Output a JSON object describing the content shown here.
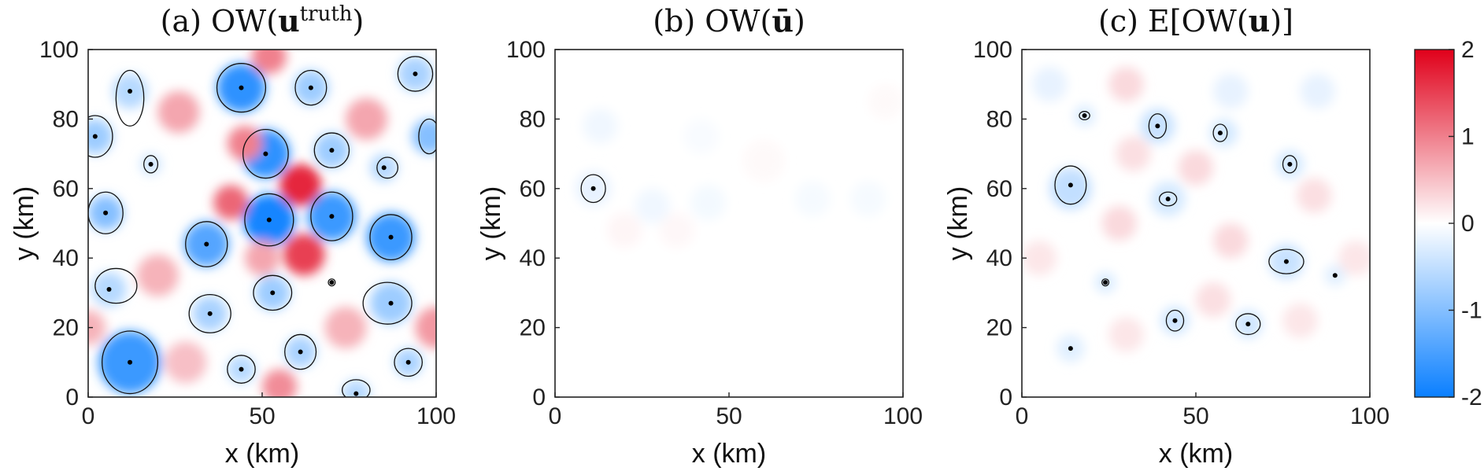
{
  "chart_data": [
    {
      "type": "heatmap",
      "title": "(a) OW(u^truth)",
      "title_parts": {
        "prefix": "(a) OW(",
        "bold": "u",
        "sup": "truth",
        "suffix": ")"
      },
      "xlabel": "x (km)",
      "ylabel": "y (km)",
      "xlim": [
        0,
        100
      ],
      "ylim": [
        0,
        100
      ],
      "xticks": [
        "0",
        "50",
        "100"
      ],
      "yticks": [
        "0",
        "20",
        "40",
        "60",
        "80",
        "100"
      ],
      "blobs": [
        {
          "x": 12,
          "y": 10,
          "v": -1.6,
          "r": 9
        },
        {
          "x": 44,
          "y": 89,
          "v": -1.7,
          "r": 7
        },
        {
          "x": 51,
          "y": 70,
          "v": -1.7,
          "r": 7
        },
        {
          "x": 52,
          "y": 51,
          "v": -1.9,
          "r": 7.5
        },
        {
          "x": 70,
          "y": 52,
          "v": -1.6,
          "r": 7
        },
        {
          "x": 87,
          "y": 46,
          "v": -1.6,
          "r": 7
        },
        {
          "x": 34,
          "y": 44,
          "v": -1.4,
          "r": 6.5
        },
        {
          "x": 5,
          "y": 53,
          "v": -1.0,
          "r": 5
        },
        {
          "x": 2,
          "y": 75,
          "v": -0.8,
          "r": 5
        },
        {
          "x": 12,
          "y": 88,
          "v": -0.6,
          "r": 5
        },
        {
          "x": 64,
          "y": 89,
          "v": -0.8,
          "r": 5
        },
        {
          "x": 70,
          "y": 71,
          "v": -0.8,
          "r": 5
        },
        {
          "x": 85,
          "y": 66,
          "v": -0.6,
          "r": 4
        },
        {
          "x": 94,
          "y": 93,
          "v": -0.7,
          "r": 5
        },
        {
          "x": 98,
          "y": 75,
          "v": -1.0,
          "r": 5
        },
        {
          "x": 18,
          "y": 67,
          "v": -0.4,
          "r": 3
        },
        {
          "x": 6,
          "y": 31,
          "v": -0.6,
          "r": 5
        },
        {
          "x": 35,
          "y": 24,
          "v": -0.7,
          "r": 5
        },
        {
          "x": 53,
          "y": 30,
          "v": -0.8,
          "r": 5
        },
        {
          "x": 87,
          "y": 27,
          "v": -0.8,
          "r": 6
        },
        {
          "x": 61,
          "y": 13,
          "v": -0.7,
          "r": 4.5
        },
        {
          "x": 44,
          "y": 8,
          "v": -0.6,
          "r": 4
        },
        {
          "x": 92,
          "y": 10,
          "v": -0.7,
          "r": 4
        },
        {
          "x": 77,
          "y": 1,
          "v": -0.6,
          "r": 4
        },
        {
          "x": 61,
          "y": 61,
          "v": 1.7,
          "r": 6
        },
        {
          "x": 62,
          "y": 41,
          "v": 1.5,
          "r": 6
        },
        {
          "x": 41,
          "y": 56,
          "v": 1.2,
          "r": 5
        },
        {
          "x": 45,
          "y": 73,
          "v": 1.0,
          "r": 5
        },
        {
          "x": 52,
          "y": 98,
          "v": 1.0,
          "r": 5
        },
        {
          "x": 26,
          "y": 82,
          "v": 0.7,
          "r": 6
        },
        {
          "x": 80,
          "y": 80,
          "v": 0.7,
          "r": 6
        },
        {
          "x": 100,
          "y": 20,
          "v": 0.8,
          "r": 6
        },
        {
          "x": 20,
          "y": 35,
          "v": 0.6,
          "r": 6
        },
        {
          "x": 50,
          "y": 40,
          "v": 0.7,
          "r": 5
        },
        {
          "x": 28,
          "y": 10,
          "v": 0.5,
          "r": 6
        },
        {
          "x": 74,
          "y": 20,
          "v": 0.6,
          "r": 6
        },
        {
          "x": 55,
          "y": 3,
          "v": 0.9,
          "r": 5
        },
        {
          "x": 0,
          "y": 20,
          "v": 0.6,
          "r": 5
        }
      ],
      "contours": [
        {
          "x": 12,
          "y": 10,
          "rx": 8,
          "ry": 9
        },
        {
          "x": 44,
          "y": 89,
          "rx": 7,
          "ry": 7
        },
        {
          "x": 51,
          "y": 70,
          "rx": 6.5,
          "ry": 7
        },
        {
          "x": 52,
          "y": 51,
          "rx": 7,
          "ry": 7.5
        },
        {
          "x": 70,
          "y": 52,
          "rx": 6,
          "ry": 7
        },
        {
          "x": 87,
          "y": 46,
          "rx": 6,
          "ry": 6.5
        },
        {
          "x": 34,
          "y": 44,
          "rx": 6,
          "ry": 6.5
        },
        {
          "x": 5,
          "y": 53,
          "rx": 5,
          "ry": 6
        },
        {
          "x": 2,
          "y": 75,
          "rx": 5,
          "ry": 6
        },
        {
          "x": 12,
          "y": 86,
          "rx": 4,
          "ry": 8
        },
        {
          "x": 64,
          "y": 89,
          "rx": 4.5,
          "ry": 5
        },
        {
          "x": 70,
          "y": 71,
          "rx": 5,
          "ry": 5
        },
        {
          "x": 86,
          "y": 66,
          "rx": 3,
          "ry": 3
        },
        {
          "x": 94,
          "y": 93,
          "rx": 5,
          "ry": 5
        },
        {
          "x": 98,
          "y": 75,
          "rx": 3,
          "ry": 5
        },
        {
          "x": 18,
          "y": 67,
          "rx": 2,
          "ry": 2.5
        },
        {
          "x": 8,
          "y": 32,
          "rx": 6,
          "ry": 5
        },
        {
          "x": 35,
          "y": 24,
          "rx": 6,
          "ry": 5.5
        },
        {
          "x": 53,
          "y": 30,
          "rx": 5.5,
          "ry": 5
        },
        {
          "x": 86,
          "y": 27,
          "rx": 7,
          "ry": 6
        },
        {
          "x": 61,
          "y": 13,
          "rx": 4.5,
          "ry": 5
        },
        {
          "x": 44,
          "y": 8,
          "rx": 4,
          "ry": 4
        },
        {
          "x": 92,
          "y": 10,
          "rx": 4,
          "ry": 4
        },
        {
          "x": 77,
          "y": 2,
          "rx": 4,
          "ry": 3
        },
        {
          "x": 70,
          "y": 33,
          "rx": 1,
          "ry": 1
        }
      ],
      "centers": [
        [
          12,
          10
        ],
        [
          44,
          89
        ],
        [
          51,
          70
        ],
        [
          52,
          51
        ],
        [
          70,
          52
        ],
        [
          87,
          46
        ],
        [
          34,
          44
        ],
        [
          5,
          53
        ],
        [
          2,
          75
        ],
        [
          12,
          88
        ],
        [
          64,
          89
        ],
        [
          70,
          71
        ],
        [
          85,
          66
        ],
        [
          94,
          93
        ],
        [
          18,
          67
        ],
        [
          6,
          31
        ],
        [
          35,
          24
        ],
        [
          53,
          30
        ],
        [
          87,
          27
        ],
        [
          61,
          13
        ],
        [
          44,
          8
        ],
        [
          92,
          10
        ],
        [
          77,
          1
        ],
        [
          70,
          33
        ]
      ]
    },
    {
      "type": "heatmap",
      "title": "(b) OW(ū)",
      "title_parts": {
        "prefix": "(b) OW(",
        "bold": "ū",
        "sup": "",
        "suffix": ")"
      },
      "xlabel": "x (km)",
      "ylabel": "y (km)",
      "xlim": [
        0,
        100
      ],
      "ylim": [
        0,
        100
      ],
      "xticks": [
        "0",
        "50",
        "100"
      ],
      "yticks": [
        "0",
        "20",
        "40",
        "60",
        "80",
        "100"
      ],
      "blobs": [
        {
          "x": 11,
          "y": 60,
          "v": -0.2,
          "r": 5
        },
        {
          "x": 13,
          "y": 78,
          "v": -0.12,
          "r": 5
        },
        {
          "x": 28,
          "y": 55,
          "v": -0.12,
          "r": 5
        },
        {
          "x": 44,
          "y": 56,
          "v": -0.1,
          "r": 5
        },
        {
          "x": 74,
          "y": 57,
          "v": -0.08,
          "r": 5
        },
        {
          "x": 90,
          "y": 57,
          "v": -0.08,
          "r": 5
        },
        {
          "x": 42,
          "y": 75,
          "v": -0.06,
          "r": 5
        },
        {
          "x": 20,
          "y": 48,
          "v": 0.08,
          "r": 5
        },
        {
          "x": 35,
          "y": 48,
          "v": 0.06,
          "r": 5
        },
        {
          "x": 60,
          "y": 68,
          "v": 0.05,
          "r": 6
        },
        {
          "x": 95,
          "y": 85,
          "v": 0.05,
          "r": 5
        }
      ],
      "contours": [
        {
          "x": 11,
          "y": 60,
          "rx": 3.5,
          "ry": 4
        }
      ],
      "centers": [
        [
          11,
          60
        ]
      ]
    },
    {
      "type": "heatmap",
      "title": "(c) E[OW(u)]",
      "title_parts": {
        "prefix": "(c) E[OW(",
        "bold": "u",
        "sup": "",
        "suffix": ")]"
      },
      "xlabel": "x (km)",
      "ylabel": "y (km)",
      "xlim": [
        0,
        100
      ],
      "ylim": [
        0,
        100
      ],
      "xticks": [
        "0",
        "50",
        "100"
      ],
      "yticks": [
        "0",
        "20",
        "40",
        "60",
        "80",
        "100"
      ],
      "blobs": [
        {
          "x": 14,
          "y": 60,
          "v": -0.5,
          "r": 6
        },
        {
          "x": 39,
          "y": 78,
          "v": -0.45,
          "r": 5
        },
        {
          "x": 58,
          "y": 76,
          "v": -0.35,
          "r": 4
        },
        {
          "x": 42,
          "y": 57,
          "v": -0.35,
          "r": 5
        },
        {
          "x": 76,
          "y": 39,
          "v": -0.45,
          "r": 5
        },
        {
          "x": 44,
          "y": 22,
          "v": -0.4,
          "r": 4
        },
        {
          "x": 65,
          "y": 21,
          "v": -0.4,
          "r": 4
        },
        {
          "x": 77,
          "y": 67,
          "v": -0.35,
          "r": 4
        },
        {
          "x": 24,
          "y": 33,
          "v": -0.3,
          "r": 3
        },
        {
          "x": 18,
          "y": 81,
          "v": -0.3,
          "r": 3
        },
        {
          "x": 14,
          "y": 14,
          "v": -0.25,
          "r": 4
        },
        {
          "x": 90,
          "y": 35,
          "v": -0.25,
          "r": 3
        },
        {
          "x": 60,
          "y": 88,
          "v": -0.2,
          "r": 5
        },
        {
          "x": 85,
          "y": 88,
          "v": -0.2,
          "r": 5
        },
        {
          "x": 8,
          "y": 90,
          "v": -0.2,
          "r": 5
        },
        {
          "x": 30,
          "y": 90,
          "v": 0.3,
          "r": 5
        },
        {
          "x": 50,
          "y": 66,
          "v": 0.3,
          "r": 5
        },
        {
          "x": 28,
          "y": 50,
          "v": 0.3,
          "r": 5
        },
        {
          "x": 60,
          "y": 45,
          "v": 0.3,
          "r": 5
        },
        {
          "x": 84,
          "y": 58,
          "v": 0.25,
          "r": 5
        },
        {
          "x": 32,
          "y": 70,
          "v": 0.25,
          "r": 5
        },
        {
          "x": 55,
          "y": 28,
          "v": 0.25,
          "r": 5
        },
        {
          "x": 30,
          "y": 18,
          "v": 0.2,
          "r": 5
        },
        {
          "x": 80,
          "y": 22,
          "v": 0.2,
          "r": 5
        },
        {
          "x": 96,
          "y": 40,
          "v": 0.2,
          "r": 5
        },
        {
          "x": 5,
          "y": 40,
          "v": 0.2,
          "r": 5
        }
      ],
      "contours": [
        {
          "x": 14,
          "y": 61,
          "rx": 4.5,
          "ry": 5.5
        },
        {
          "x": 39,
          "y": 78,
          "rx": 2.5,
          "ry": 3.5
        },
        {
          "x": 57,
          "y": 76,
          "rx": 2,
          "ry": 2.5
        },
        {
          "x": 42,
          "y": 57,
          "rx": 2.5,
          "ry": 2
        },
        {
          "x": 76,
          "y": 39,
          "rx": 5,
          "ry": 3.5
        },
        {
          "x": 44,
          "y": 22,
          "rx": 2.5,
          "ry": 3
        },
        {
          "x": 65,
          "y": 21,
          "rx": 3.5,
          "ry": 3
        },
        {
          "x": 77,
          "y": 67,
          "rx": 2,
          "ry": 2.5
        },
        {
          "x": 24,
          "y": 33,
          "rx": 1,
          "ry": 1
        },
        {
          "x": 18,
          "y": 81,
          "rx": 1.5,
          "ry": 1.2
        }
      ],
      "centers": [
        [
          14,
          61
        ],
        [
          39,
          78
        ],
        [
          57,
          76
        ],
        [
          42,
          57
        ],
        [
          76,
          39
        ],
        [
          44,
          22
        ],
        [
          65,
          21
        ],
        [
          77,
          67
        ],
        [
          24,
          33
        ],
        [
          18,
          81
        ],
        [
          14,
          14
        ],
        [
          90,
          35
        ]
      ]
    }
  ],
  "colorbar": {
    "ticks": [
      "2",
      "1",
      "0",
      "-1",
      "-2"
    ],
    "min": -2,
    "max": 2,
    "colors": {
      "low": "#0a7fff",
      "mid": "#ffffff",
      "high": "#e0001a"
    }
  }
}
